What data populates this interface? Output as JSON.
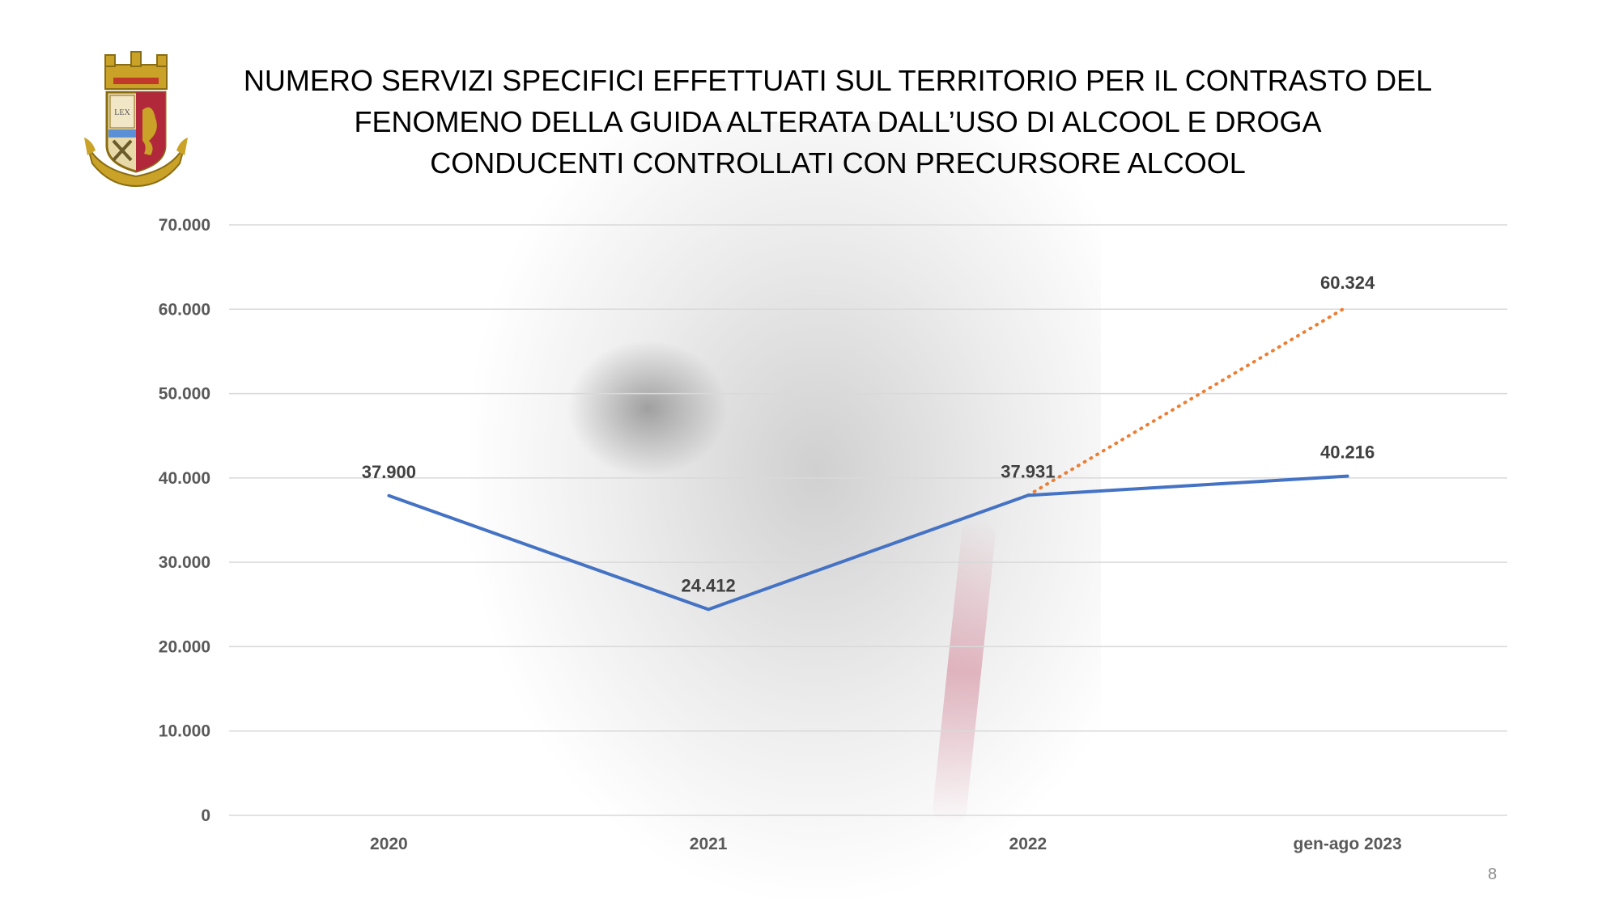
{
  "title_lines": [
    "NUMERO SERVIZI SPECIFICI EFFETTUATI SUL TERRITORIO PER IL CONTRASTO DEL",
    "FENOMENO DELLA GUIDA ALTERATA DALL’USO DI ALCOOL E DROGA",
    "CONDUCENTI CONTROLLATI CON PRECURSORE ALCOOL"
  ],
  "logo": {
    "icon": "polizia-di-stato-crest-icon",
    "inscription": "LEX"
  },
  "page_number": "8",
  "colors": {
    "primary_series": "#4472c4",
    "secondary_series": "#ed7d31",
    "grid": "#d9d9d9"
  },
  "chart_data": {
    "type": "line",
    "categories": [
      "2020",
      "2021",
      "2022",
      "gen-ago 2023"
    ],
    "ylim": [
      0,
      70000
    ],
    "yticks": [
      0,
      10000,
      20000,
      30000,
      40000,
      50000,
      60000,
      70000
    ],
    "ytick_labels": [
      "0",
      "10.000",
      "20.000",
      "30.000",
      "40.000",
      "50.000",
      "60.000",
      "70.000"
    ],
    "grid": true,
    "legend": "none",
    "series": [
      {
        "style": "solid",
        "color": "#4472c4",
        "values": [
          37900,
          24412,
          37931,
          40216
        ],
        "labels": [
          "37.900",
          "24.412",
          "37.931",
          "40.216"
        ]
      },
      {
        "style": "dotted",
        "color": "#ed7d31",
        "values": [
          null,
          null,
          37931,
          60324
        ],
        "labels": [
          null,
          null,
          null,
          "60.324"
        ]
      }
    ]
  }
}
